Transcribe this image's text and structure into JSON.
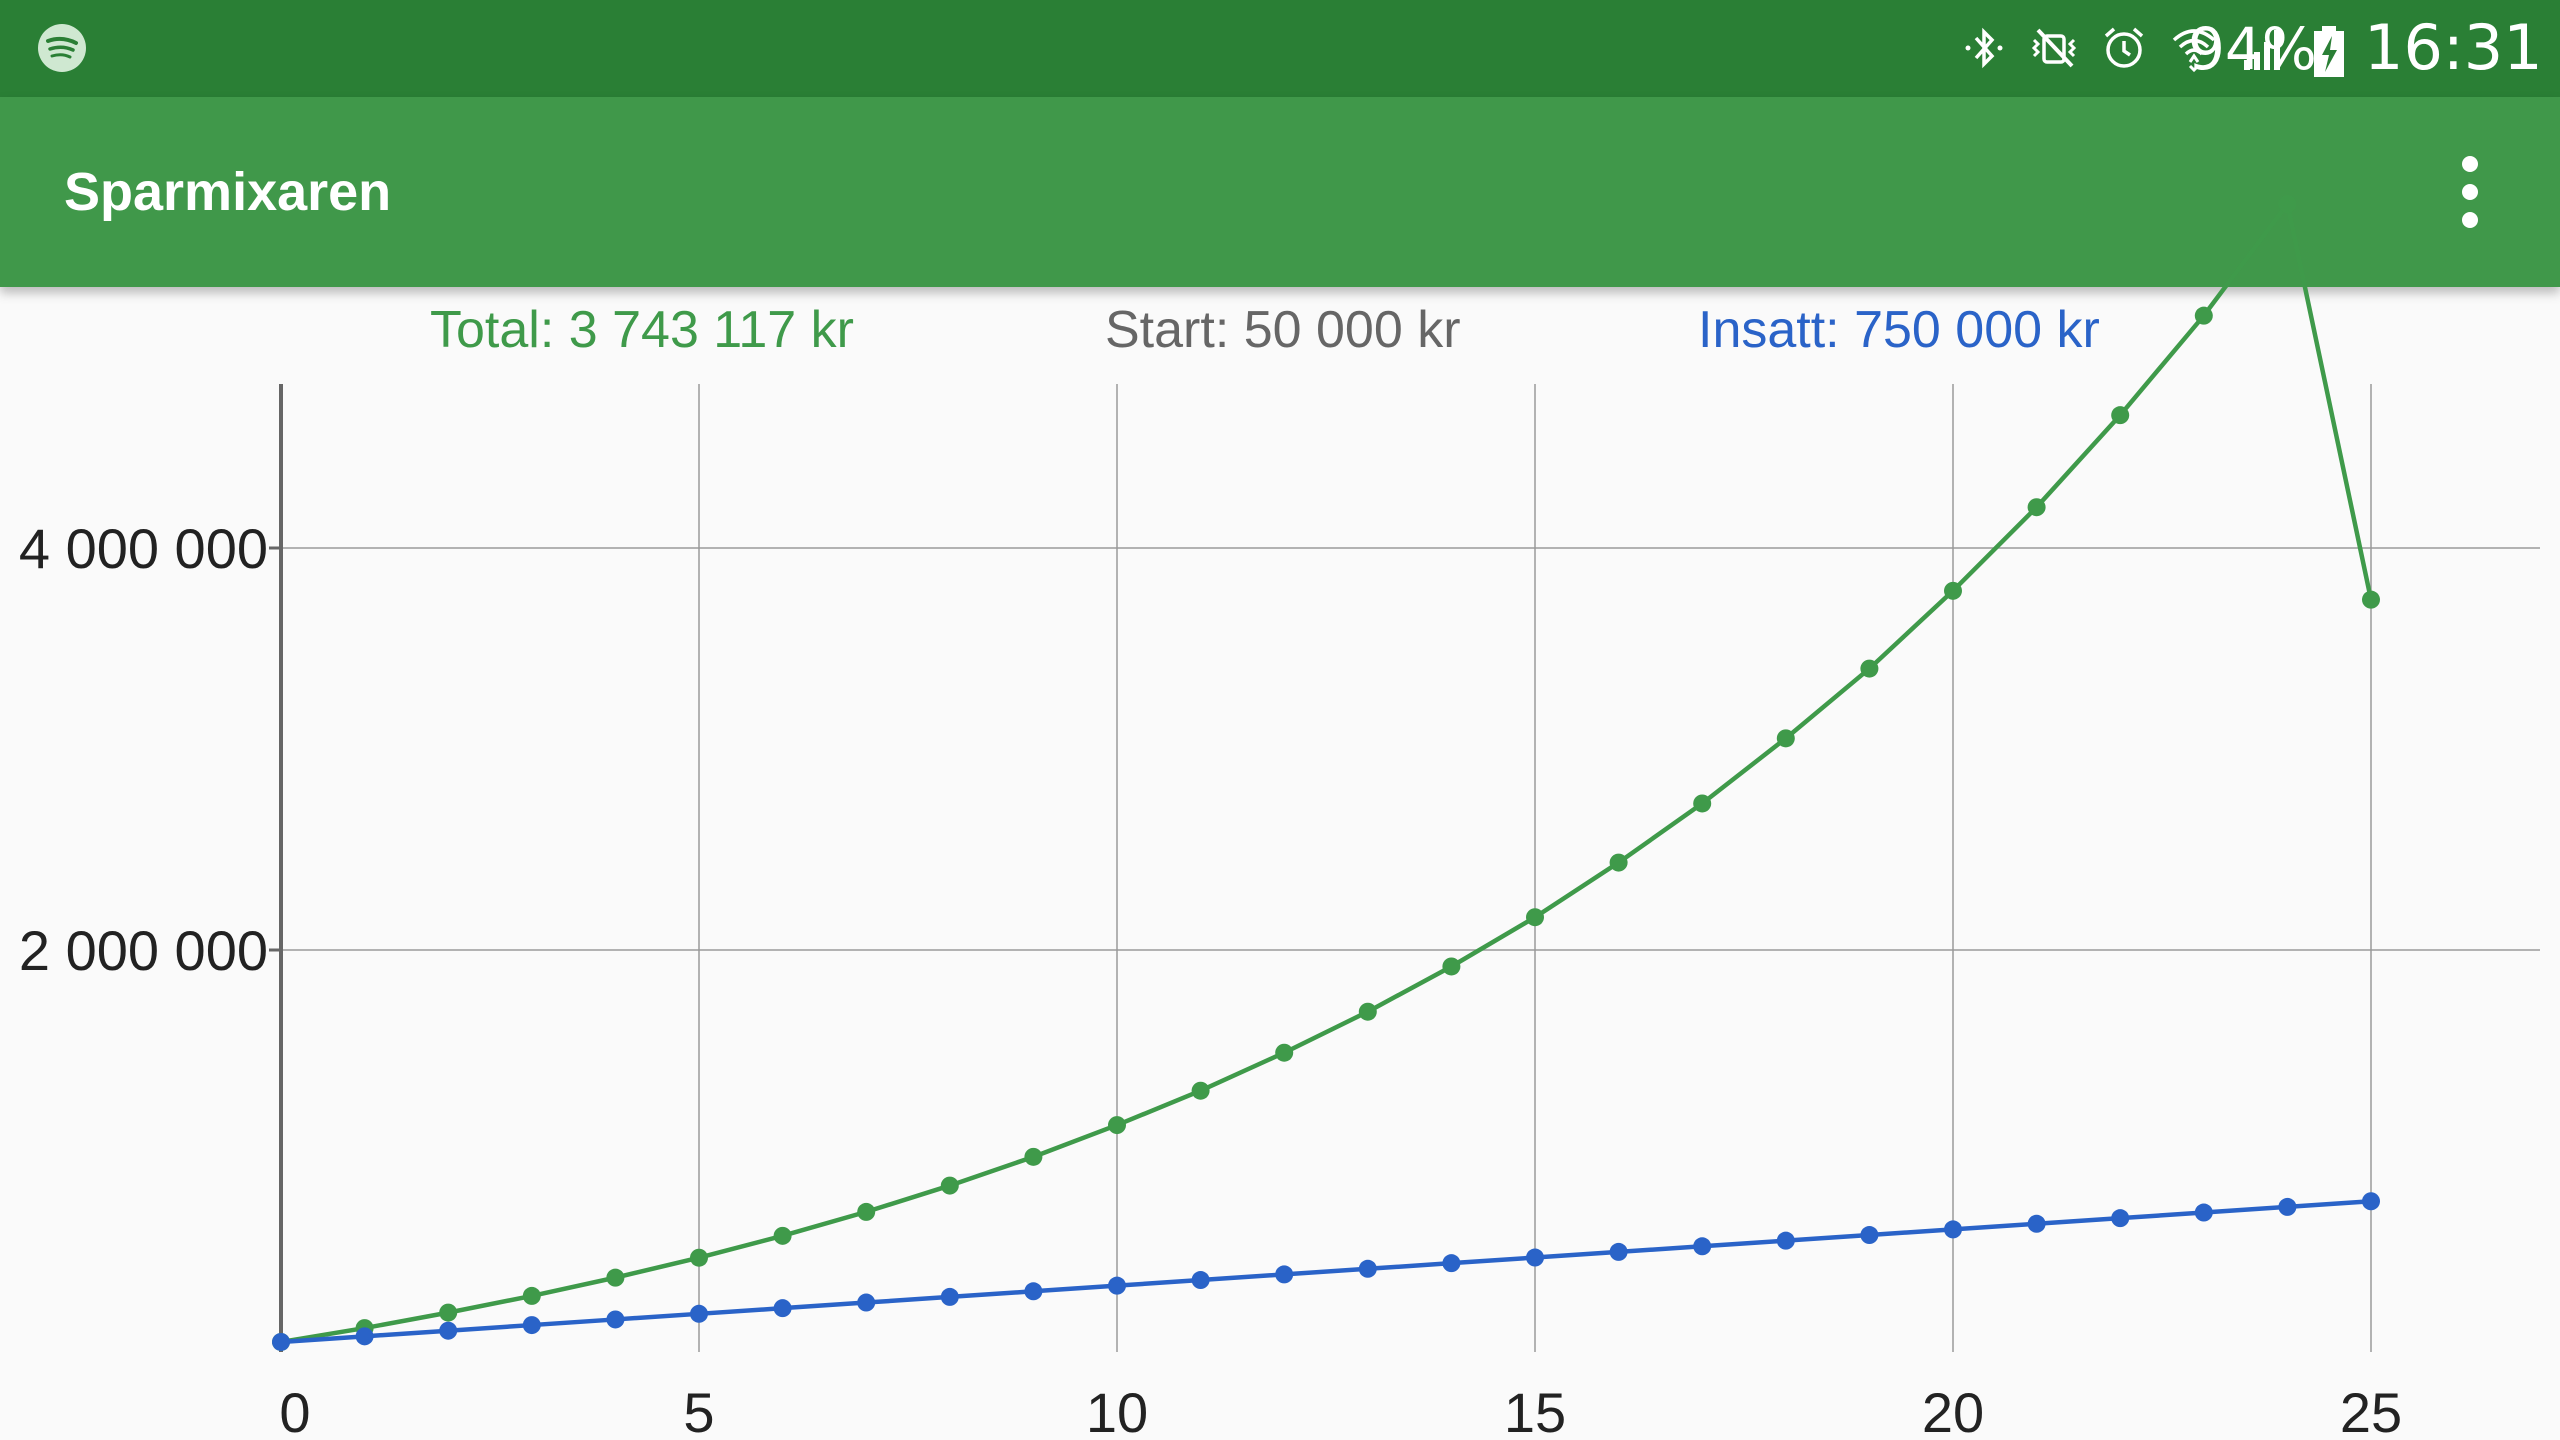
{
  "status_bar": {
    "icons": [
      "spotify-icon",
      "bluetooth-icon",
      "vibrate-mute-icon",
      "alarm-icon",
      "wifi-icon",
      "signal-icon"
    ],
    "battery_percent": "94%",
    "battery_icon": "battery-charging-icon",
    "time": "16:31"
  },
  "app_bar": {
    "title": "Sparmixaren",
    "overflow_icon": "more-vert-icon"
  },
  "summary": {
    "total": "Total: 3 743 117 kr",
    "start": "Start: 50 000 kr",
    "insatt": "Insatt: 750 000 kr"
  },
  "colors": {
    "status_bar": "#2a7f35",
    "app_bar": "#40984a",
    "total": "#3f9a4a",
    "start": "#666666",
    "insatt": "#2a63c8"
  },
  "chart_data": {
    "type": "line",
    "x": [
      0,
      1,
      2,
      3,
      4,
      5,
      6,
      7,
      8,
      9,
      10,
      11,
      12,
      13,
      14,
      15,
      16,
      17,
      18,
      19,
      20,
      21,
      22,
      23,
      24,
      25
    ],
    "xticks": [
      "0",
      "5",
      "10",
      "15",
      "20",
      "25"
    ],
    "yticks": [
      "2 000 000",
      "4 000 000"
    ],
    "ylim": [
      0,
      4900000
    ],
    "xlim": [
      0,
      27
    ],
    "grid": true,
    "series": [
      {
        "color": "#3f9a4a",
        "values": [
          50000,
          119000,
          196000,
          279000,
          370000,
          469000,
          578000,
          697000,
          828000,
          971000,
          1129000,
          1300000,
          1489000,
          1693000,
          1918000,
          2163000,
          2435000,
          2729000,
          3053000,
          3400000,
          3787000,
          4203000,
          4661000,
          5156000,
          5711000,
          3743117
        ]
      },
      {
        "color": "#2a63c8",
        "values": [
          50000,
          78000,
          106000,
          134000,
          162000,
          190000,
          218000,
          246000,
          274000,
          302000,
          330000,
          358000,
          386000,
          414000,
          442000,
          470000,
          498000,
          526000,
          554000,
          582000,
          610000,
          638000,
          666000,
          694000,
          722000,
          750000
        ]
      }
    ]
  }
}
